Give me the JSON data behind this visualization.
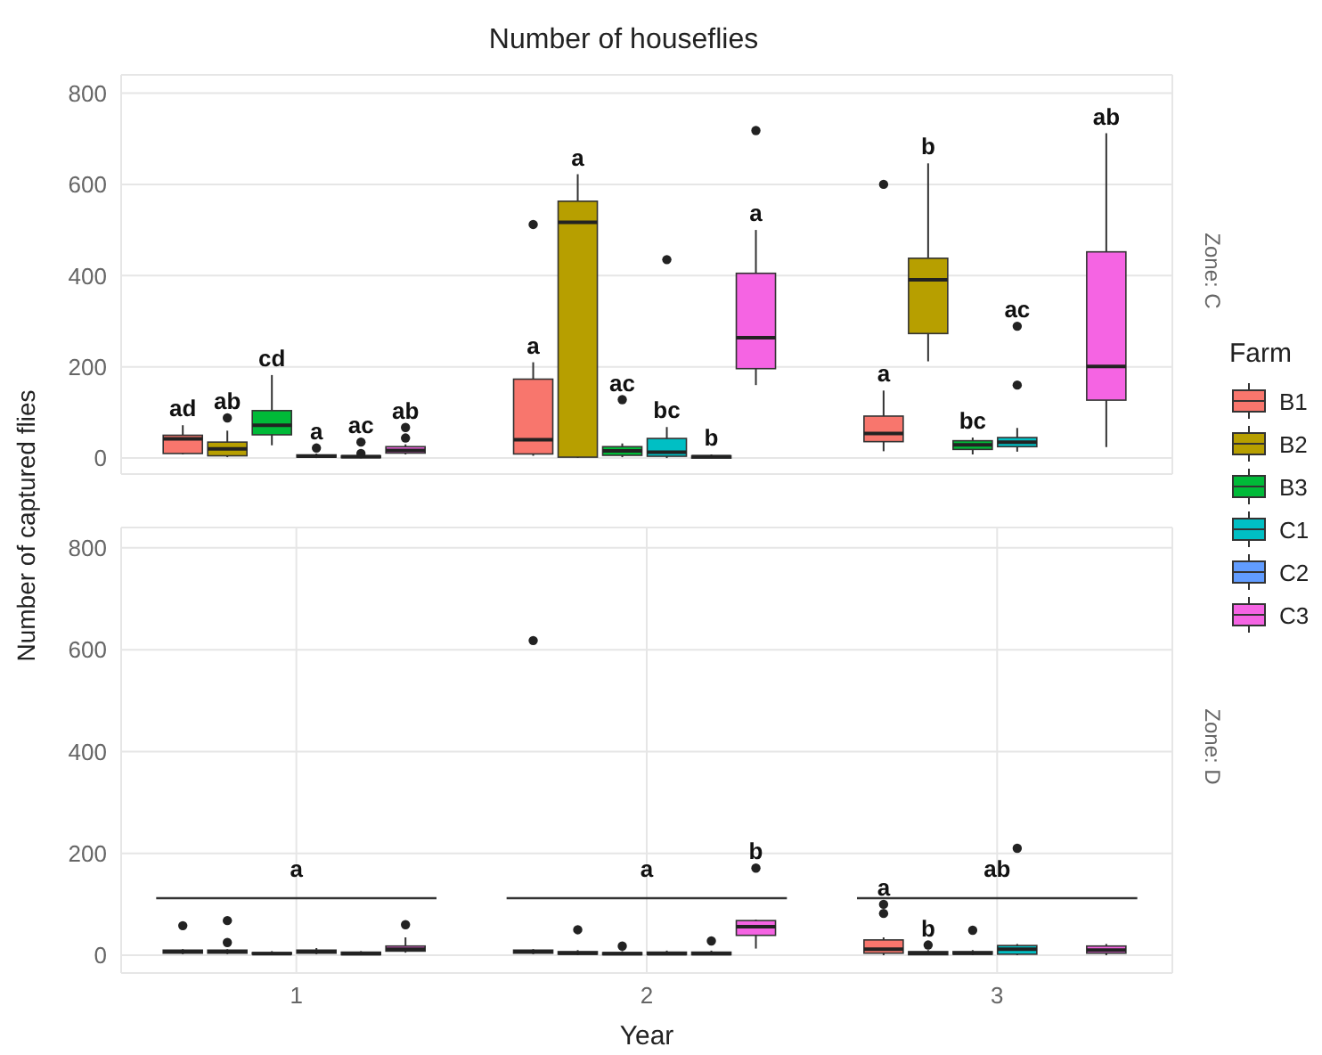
{
  "chart_data": [
    {
      "type": "box",
      "title": "Number of houseflies",
      "ylabel": "Number of captured flies",
      "legend_title": "Farm",
      "legend": "right",
      "grid": true,
      "tick_labels": "y",
      "categories": [
        "1",
        "2",
        "3"
      ],
      "ylim": [
        -35,
        840
      ],
      "yticks": [
        0,
        200,
        400,
        600,
        800
      ],
      "annotations": [
        "Zone: C"
      ],
      "series": [
        {
          "name": "B1",
          "color": "#f8766d",
          "value_labels": [
            "ad",
            "a",
            "a"
          ],
          "boxes": [
            {
              "low": 8,
              "q1": 10,
              "median": 42,
              "q3": 50,
              "high": 72
            },
            {
              "low": 5,
              "q1": 9,
              "median": 40,
              "q3": 173,
              "high": 210,
              "outliers": [
                512
              ]
            },
            {
              "low": 15,
              "q1": 36,
              "median": 54,
              "q3": 92,
              "high": 148,
              "outliers": [
                600
              ]
            }
          ]
        },
        {
          "name": "B2",
          "color": "#b79f00",
          "value_labels": [
            "ab",
            "a",
            "b"
          ],
          "boxes": [
            {
              "low": 2,
              "q1": 5,
              "median": 20,
              "q3": 35,
              "high": 60,
              "outliers": [
                88
              ]
            },
            {
              "low": 0,
              "q1": 2,
              "median": 517,
              "q3": 563,
              "high": 622
            },
            {
              "low": 212,
              "q1": 273,
              "median": 391,
              "q3": 438,
              "high": 646
            }
          ]
        },
        {
          "name": "B3",
          "color": "#00ba38",
          "value_labels": [
            "cd",
            "ac",
            "bc"
          ],
          "boxes": [
            {
              "low": 28,
              "q1": 51,
              "median": 72,
              "q3": 104,
              "high": 182
            },
            {
              "low": 2,
              "q1": 6,
              "median": 16,
              "q3": 25,
              "high": 32,
              "outliers": [
                128
              ]
            },
            {
              "low": 8,
              "q1": 19,
              "median": 29,
              "q3": 38,
              "high": 45
            }
          ]
        },
        {
          "name": "C1",
          "color": "#00bfc4",
          "value_labels": [
            "a",
            "bc",
            "ac"
          ],
          "boxes": [
            {
              "low": 0,
              "q1": 2,
              "median": 4,
              "q3": 7,
              "high": 10,
              "outliers": [
                22
              ]
            },
            {
              "low": 0,
              "q1": 4,
              "median": 13,
              "q3": 43,
              "high": 68,
              "outliers": [
                435
              ]
            },
            {
              "low": 14,
              "q1": 25,
              "median": 35,
              "q3": 45,
              "high": 66,
              "outliers": [
                160,
                289
              ]
            }
          ]
        },
        {
          "name": "C2",
          "color": "#619cff",
          "value_labels": [
            "ac",
            "b",
            null
          ],
          "boxes": [
            {
              "low": 0,
              "q1": 1,
              "median": 3,
              "q3": 5,
              "high": 8,
              "outliers": [
                10,
                35
              ]
            },
            {
              "low": 0,
              "q1": 0,
              "median": 3,
              "q3": 5,
              "high": 8
            },
            null
          ]
        },
        {
          "name": "C3",
          "color": "#f564e3",
          "value_labels": [
            "ab",
            "a",
            "ab"
          ],
          "boxes": [
            {
              "low": 8,
              "q1": 11,
              "median": 17,
              "q3": 25,
              "high": 30,
              "outliers": [
                44,
                67
              ]
            },
            {
              "low": 160,
              "q1": 196,
              "median": 264,
              "q3": 405,
              "high": 500,
              "outliers": [
                718
              ]
            },
            {
              "low": 24,
              "q1": 127,
              "median": 201,
              "q3": 452,
              "high": 712
            }
          ]
        }
      ]
    },
    {
      "type": "box",
      "xlabel": "Year",
      "grid": true,
      "categories": [
        "1",
        "2",
        "3"
      ],
      "ylim": [
        -35,
        840
      ],
      "yticks": [
        0,
        200,
        400,
        600,
        800
      ],
      "annotations": [
        "Zone: D",
        "a",
        "a",
        "ab"
      ],
      "series": [
        {
          "color": "#f8766d",
          "value_labels": [
            null,
            null,
            "a"
          ],
          "boxes": [
            {
              "low": 2,
              "q1": 4,
              "median": 7,
              "q3": 10,
              "high": 12,
              "outliers": [
                58
              ]
            },
            {
              "low": 2,
              "q1": 4,
              "median": 7,
              "q3": 10,
              "high": 12,
              "outliers": [
                618
              ]
            },
            {
              "low": 0,
              "q1": 4,
              "median": 12,
              "q3": 30,
              "high": 35,
              "outliers": [
                82,
                100
              ]
            }
          ]
        },
        {
          "color": "#b79f00",
          "value_labels": [
            null,
            null,
            "b"
          ],
          "boxes": [
            {
              "low": 2,
              "q1": 4,
              "median": 7,
              "q3": 10,
              "high": 12,
              "outliers": [
                25,
                68
              ]
            },
            {
              "low": 0,
              "q1": 2,
              "median": 4,
              "q3": 7,
              "high": 10,
              "outliers": [
                50
              ]
            },
            {
              "low": 0,
              "q1": 1,
              "median": 4,
              "q3": 7,
              "high": 10,
              "outliers": [
                20
              ]
            }
          ]
        },
        {
          "color": "#00ba38",
          "boxes": [
            {
              "low": 0,
              "q1": 2,
              "median": 3,
              "q3": 5,
              "high": 8
            },
            {
              "low": 0,
              "q1": 1,
              "median": 3,
              "q3": 5,
              "high": 8,
              "outliers": [
                18
              ]
            },
            {
              "low": 0,
              "q1": 2,
              "median": 4,
              "q3": 7,
              "high": 10,
              "outliers": [
                49
              ]
            }
          ]
        },
        {
          "color": "#00bfc4",
          "boxes": [
            {
              "low": 2,
              "q1": 4,
              "median": 7,
              "q3": 10,
              "high": 14
            },
            {
              "low": 0,
              "q1": 1,
              "median": 3,
              "q3": 6,
              "high": 9
            },
            {
              "low": 0,
              "q1": 2,
              "median": 12,
              "q3": 19,
              "high": 22,
              "outliers": [
                210
              ]
            }
          ]
        },
        {
          "color": "#619cff",
          "boxes": [
            {
              "low": 0,
              "q1": 1,
              "median": 3,
              "q3": 6,
              "high": 8
            },
            {
              "low": 0,
              "q1": 1,
              "median": 3,
              "q3": 6,
              "high": 9,
              "outliers": [
                28
              ]
            },
            null
          ]
        },
        {
          "color": "#f564e3",
          "value_labels": [
            null,
            "b",
            null
          ],
          "boxes": [
            {
              "low": 5,
              "q1": 8,
              "median": 12,
              "q3": 18,
              "high": 35,
              "outliers": [
                60
              ]
            },
            {
              "low": 13,
              "q1": 39,
              "median": 56,
              "q3": 68,
              "high": 70,
              "outliers": [
                171
              ]
            },
            {
              "low": 0,
              "q1": 4,
              "median": 10,
              "q3": 18,
              "high": 22
            }
          ]
        }
      ]
    }
  ]
}
